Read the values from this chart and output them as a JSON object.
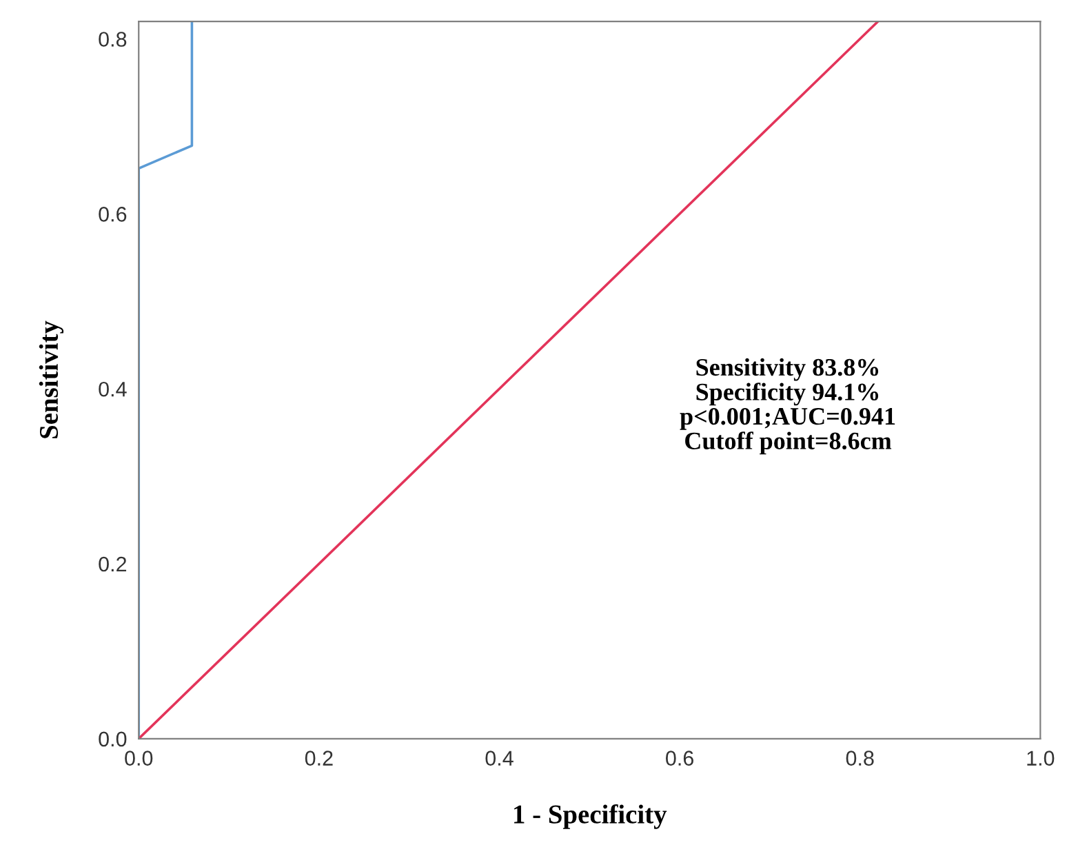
{
  "chart_data": {
    "type": "line",
    "xlabel": "1 - Specificity",
    "ylabel": "Sensitivity",
    "series": [
      {
        "x": [
          0,
          0,
          0.059,
          0.059
        ],
        "values": [
          0,
          0.652,
          0.678,
          0.82
        ],
        "color": "#5b9bd5"
      },
      {
        "x": [
          0,
          0.82
        ],
        "values": [
          0,
          0.82
        ],
        "color": "#e3345a"
      }
    ],
    "xlim": [
      0,
      1
    ],
    "ylim": [
      0,
      0.82
    ],
    "xticks": [
      {
        "value": 0,
        "label": "0.0"
      },
      0.2,
      0.4,
      0.6,
      0.8,
      {
        "value": 1,
        "label": "1.0"
      }
    ],
    "yticks": [
      {
        "value": 0,
        "label": "0.0"
      },
      0.2,
      0.4,
      0.6,
      0.8
    ],
    "annotations": [
      "Sensitivity 83.8%\nSpecificity 94.1%\np<0.001;AUC=0.941\nCutoff point=8.6cm"
    ],
    "grid": false,
    "legend": false,
    "marker": "none",
    "line_style": "solid"
  }
}
